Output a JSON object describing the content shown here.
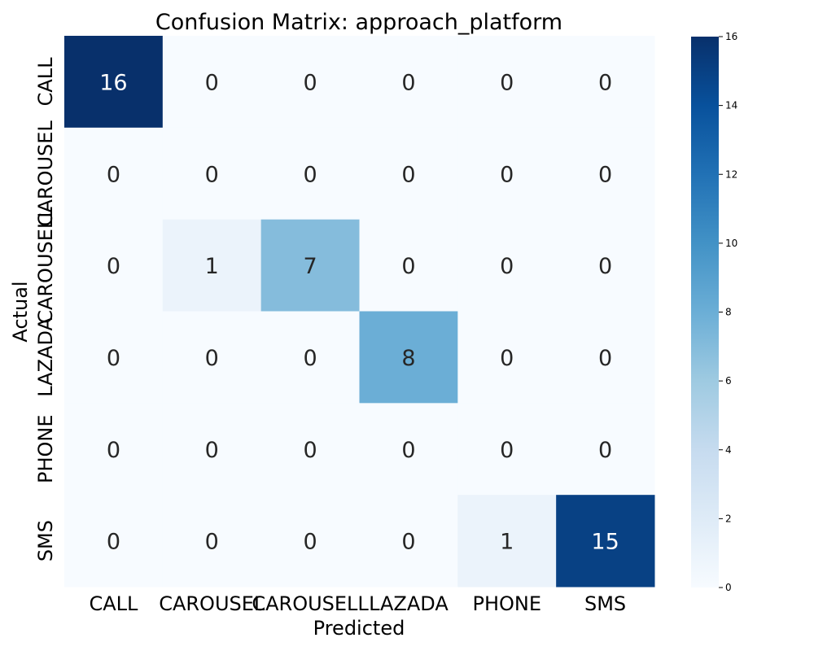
{
  "chart_data": {
    "type": "heatmap",
    "title": "Confusion Matrix: approach_platform",
    "xlabel": "Predicted",
    "ylabel": "Actual",
    "x_categories": [
      "CALL",
      "CAROUSEL",
      "CAROUSELL",
      "LAZADA",
      "PHONE",
      "SMS"
    ],
    "y_categories": [
      "CALL",
      "CAROUSEL",
      "CAROUSELL",
      "LAZADA",
      "PHONE",
      "SMS"
    ],
    "values": [
      [
        16,
        0,
        0,
        0,
        0,
        0
      ],
      [
        0,
        0,
        0,
        0,
        0,
        0
      ],
      [
        0,
        1,
        7,
        0,
        0,
        0
      ],
      [
        0,
        0,
        0,
        8,
        0,
        0
      ],
      [
        0,
        0,
        0,
        0,
        0,
        0
      ],
      [
        0,
        0,
        0,
        0,
        1,
        15
      ]
    ],
    "colormap": "Blues",
    "colorbar": {
      "range": [
        0,
        16
      ],
      "ticks": [
        "0",
        "2",
        "4",
        "6",
        "8",
        "10",
        "12",
        "14",
        "16"
      ]
    },
    "annotations": true
  }
}
